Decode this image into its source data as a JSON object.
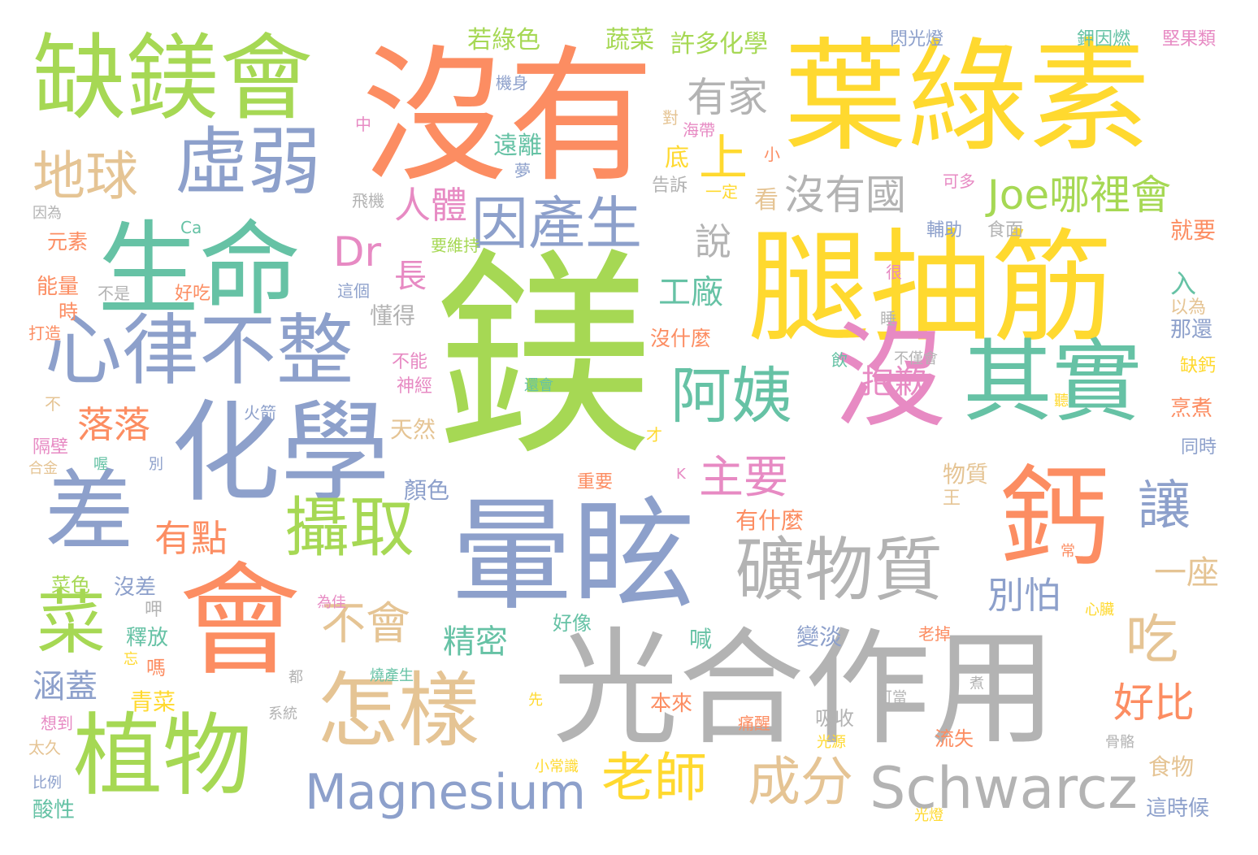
{
  "cloud": {
    "words": [
      {
        "text": "鎂",
        "color": "#a6d854"
      },
      {
        "text": "沒有",
        "color": "#fc8d62"
      },
      {
        "text": "葉綠素",
        "color": "#ffd92f"
      },
      {
        "text": "光合作用",
        "color": "#b3b3b3"
      },
      {
        "text": "腿抽筋",
        "color": "#ffd92f"
      },
      {
        "text": "暈眩",
        "color": "#8da0cb"
      },
      {
        "text": "化學",
        "color": "#8da0cb"
      },
      {
        "text": "生命",
        "color": "#66c2a5"
      },
      {
        "text": "會",
        "color": "#fc8d62"
      },
      {
        "text": "沒",
        "color": "#e78ac3"
      },
      {
        "text": "鈣",
        "color": "#fc8d62"
      },
      {
        "text": "缺鎂會",
        "color": "#a6d854"
      },
      {
        "text": "其實",
        "color": "#66c2a5"
      },
      {
        "text": "植物",
        "color": "#a6d854"
      },
      {
        "text": "怎樣",
        "color": "#e5c494"
      },
      {
        "text": "心律不整",
        "color": "#8da0cb"
      },
      {
        "text": "虛弱",
        "color": "#8da0cb"
      },
      {
        "text": "差",
        "color": "#8da0cb"
      },
      {
        "text": "礦物質",
        "color": "#b3b3b3"
      },
      {
        "text": "Schwarcz",
        "color": "#b3b3b3"
      },
      {
        "text": "菜",
        "color": "#a6d854"
      },
      {
        "text": "攝取",
        "color": "#a6d854"
      },
      {
        "text": "Magnesium",
        "color": "#8da0cb"
      },
      {
        "text": "阿姨",
        "color": "#66c2a5"
      },
      {
        "text": "因產生",
        "color": "#8da0cb"
      },
      {
        "text": "Joe哪裡會",
        "color": "#a6d854"
      },
      {
        "text": "地球",
        "color": "#e5c494"
      },
      {
        "text": "成分",
        "color": "#e5c494"
      },
      {
        "text": "老師",
        "color": "#ffd92f"
      },
      {
        "text": "吃",
        "color": "#e5c494"
      },
      {
        "text": "讓",
        "color": "#8da0cb"
      },
      {
        "text": "上",
        "color": "#ffd92f"
      },
      {
        "text": "主要",
        "color": "#e78ac3"
      },
      {
        "text": "不會",
        "color": "#e5c494"
      },
      {
        "text": "沒有國",
        "color": "#b3b3b3"
      },
      {
        "text": "有家",
        "color": "#b3b3b3"
      },
      {
        "text": "說",
        "color": "#b3b3b3"
      },
      {
        "text": "落落",
        "color": "#fc8d62"
      },
      {
        "text": "Dr",
        "color": "#e78ac3"
      },
      {
        "text": "人體",
        "color": "#e78ac3"
      },
      {
        "text": "好比",
        "color": "#fc8d62"
      },
      {
        "text": "有點",
        "color": "#fc8d62"
      },
      {
        "text": "精密",
        "color": "#66c2a5"
      },
      {
        "text": "抱歉",
        "color": "#e78ac3"
      },
      {
        "text": "別怕",
        "color": "#8da0cb"
      },
      {
        "text": "一座",
        "color": "#e5c494"
      },
      {
        "text": "工廠",
        "color": "#66c2a5"
      },
      {
        "text": "涵蓋",
        "color": "#8da0cb"
      },
      {
        "text": "長",
        "color": "#e78ac3"
      },
      {
        "text": "若綠色",
        "color": "#a6d854"
      },
      {
        "text": "蔬菜",
        "color": "#a6d854"
      },
      {
        "text": "許多化學",
        "color": "#a6d854"
      },
      {
        "text": "閃光燈",
        "color": "#8da0cb"
      },
      {
        "text": "鉀因燃",
        "color": "#66c2a5"
      },
      {
        "text": "堅果類",
        "color": "#e78ac3"
      },
      {
        "text": "機身",
        "color": "#8da0cb"
      },
      {
        "text": "中",
        "color": "#e78ac3"
      },
      {
        "text": "遠離",
        "color": "#66c2a5"
      },
      {
        "text": "對",
        "color": "#e5c494"
      },
      {
        "text": "海帶",
        "color": "#e78ac3"
      },
      {
        "text": "底",
        "color": "#ffd92f"
      },
      {
        "text": "小",
        "color": "#fc8d62"
      },
      {
        "text": "夢",
        "color": "#8da0cb"
      },
      {
        "text": "告訴",
        "color": "#b3b3b3"
      },
      {
        "text": "一定",
        "color": "#ffd92f"
      },
      {
        "text": "可多",
        "color": "#e78ac3"
      },
      {
        "text": "看",
        "color": "#e5c494"
      },
      {
        "text": "飛機",
        "color": "#b3b3b3"
      },
      {
        "text": "因為",
        "color": "#b3b3b3"
      },
      {
        "text": "元素",
        "color": "#fc8d62"
      },
      {
        "text": "Ca",
        "color": "#66c2a5"
      },
      {
        "text": "要維持",
        "color": "#a6d854"
      },
      {
        "text": "輔助",
        "color": "#8da0cb"
      },
      {
        "text": "食面",
        "color": "#b3b3b3"
      },
      {
        "text": "就要",
        "color": "#fc8d62"
      },
      {
        "text": "能量",
        "color": "#fc8d62"
      },
      {
        "text": "不是",
        "color": "#b3b3b3"
      },
      {
        "text": "好吃",
        "color": "#fc8d62"
      },
      {
        "text": "這個",
        "color": "#8da0cb"
      },
      {
        "text": "很",
        "color": "#e78ac3"
      },
      {
        "text": "入",
        "color": "#66c2a5"
      },
      {
        "text": "時",
        "color": "#fc8d62"
      },
      {
        "text": "以為",
        "color": "#e5c494"
      },
      {
        "text": "打造",
        "color": "#fc8d62"
      },
      {
        "text": "懂得",
        "color": "#b3b3b3"
      },
      {
        "text": "睡",
        "color": "#b3b3b3"
      },
      {
        "text": "那還",
        "color": "#8da0cb"
      },
      {
        "text": "沒什麼",
        "color": "#fc8d62"
      },
      {
        "text": "不能",
        "color": "#e78ac3"
      },
      {
        "text": "飲",
        "color": "#66c2a5"
      },
      {
        "text": "不僅會",
        "color": "#b3b3b3"
      },
      {
        "text": "缺鈣",
        "color": "#ffd92f"
      },
      {
        "text": "神經",
        "color": "#e78ac3"
      },
      {
        "text": "還會",
        "color": "#66c2a5"
      },
      {
        "text": "聽",
        "color": "#ffd92f"
      },
      {
        "text": "烹煮",
        "color": "#fc8d62"
      },
      {
        "text": "不",
        "color": "#e5c494"
      },
      {
        "text": "火箭",
        "color": "#8da0cb"
      },
      {
        "text": "天然",
        "color": "#e5c494"
      },
      {
        "text": "才",
        "color": "#ffd92f"
      },
      {
        "text": "隔壁",
        "color": "#e78ac3"
      },
      {
        "text": "同時",
        "color": "#8da0cb"
      },
      {
        "text": "合金",
        "color": "#e5c494"
      },
      {
        "text": "喔",
        "color": "#66c2a5"
      },
      {
        "text": "別",
        "color": "#8da0cb"
      },
      {
        "text": "顏色",
        "color": "#8da0cb"
      },
      {
        "text": "物質",
        "color": "#e5c494"
      },
      {
        "text": "K",
        "color": "#e78ac3"
      },
      {
        "text": "重要",
        "color": "#fc8d62"
      },
      {
        "text": "王",
        "color": "#e5c494"
      },
      {
        "text": "有什麼",
        "color": "#fc8d62"
      },
      {
        "text": "常",
        "color": "#fc8d62"
      },
      {
        "text": "菜色",
        "color": "#a6d854"
      },
      {
        "text": "沒差",
        "color": "#8da0cb"
      },
      {
        "text": "呷",
        "color": "#b3b3b3"
      },
      {
        "text": "為佳",
        "color": "#e78ac3"
      },
      {
        "text": "心臟",
        "color": "#ffd92f"
      },
      {
        "text": "好像",
        "color": "#66c2a5"
      },
      {
        "text": "釋放",
        "color": "#66c2a5"
      },
      {
        "text": "喊",
        "color": "#66c2a5"
      },
      {
        "text": "變淡",
        "color": "#8da0cb"
      },
      {
        "text": "老掉",
        "color": "#fc8d62"
      },
      {
        "text": "忘",
        "color": "#ffd92f"
      },
      {
        "text": "嗎",
        "color": "#fc8d62"
      },
      {
        "text": "都",
        "color": "#b3b3b3"
      },
      {
        "text": "燒產生",
        "color": "#66c2a5"
      },
      {
        "text": "可當",
        "color": "#b3b3b3"
      },
      {
        "text": "煮",
        "color": "#b3b3b3"
      },
      {
        "text": "青菜",
        "color": "#ffd92f"
      },
      {
        "text": "先",
        "color": "#ffd92f"
      },
      {
        "text": "本來",
        "color": "#fc8d62"
      },
      {
        "text": "系統",
        "color": "#b3b3b3"
      },
      {
        "text": "想到",
        "color": "#e78ac3"
      },
      {
        "text": "痛醒",
        "color": "#fc8d62"
      },
      {
        "text": "吸收",
        "color": "#b3b3b3"
      },
      {
        "text": "流失",
        "color": "#fc8d62"
      },
      {
        "text": "光源",
        "color": "#ffd92f"
      },
      {
        "text": "骨骼",
        "color": "#b3b3b3"
      },
      {
        "text": "太久",
        "color": "#e5c494"
      },
      {
        "text": "小常識",
        "color": "#ffd92f"
      },
      {
        "text": "食物",
        "color": "#e5c494"
      },
      {
        "text": "比例",
        "color": "#8da0cb"
      },
      {
        "text": "酸性",
        "color": "#66c2a5"
      },
      {
        "text": "光燈",
        "color": "#ffd92f"
      },
      {
        "text": "這時候",
        "color": "#8da0cb"
      }
    ]
  }
}
